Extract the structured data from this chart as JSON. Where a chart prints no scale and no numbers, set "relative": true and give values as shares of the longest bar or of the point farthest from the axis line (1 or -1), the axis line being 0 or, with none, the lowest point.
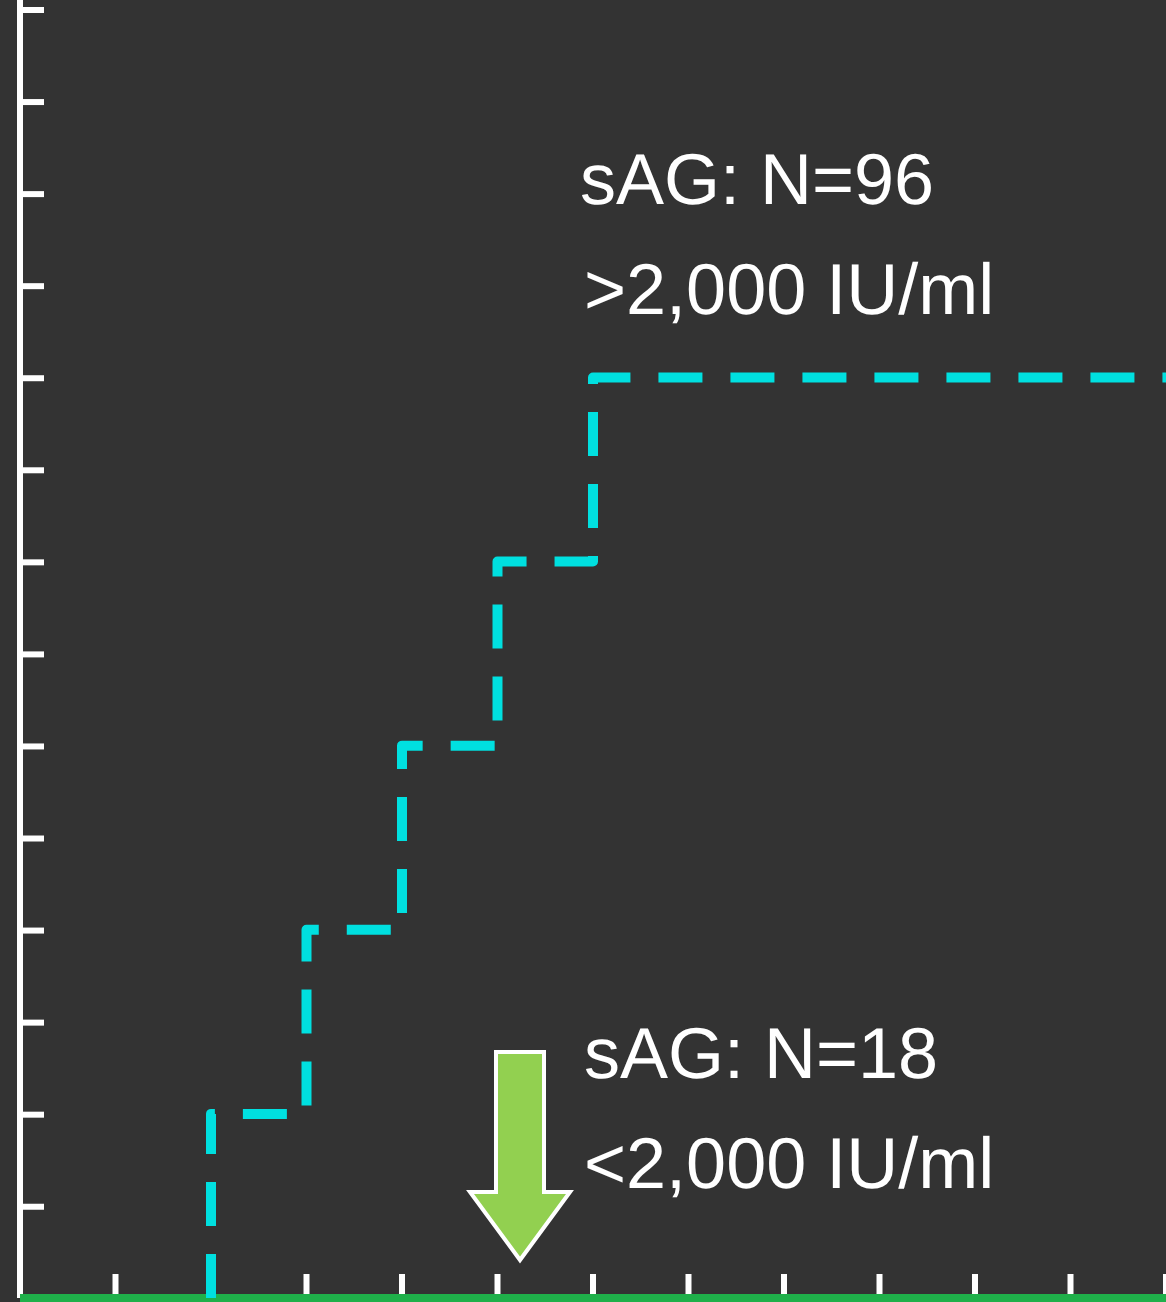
{
  "chart_data": {
    "type": "step",
    "relative": true,
    "categories": [
      null,
      null,
      null,
      null,
      null,
      null,
      null,
      null,
      null,
      null,
      null,
      null,
      null
    ],
    "series": [
      {
        "color": "#00e0e0",
        "line_style": "dashed",
        "values": [
          null,
          null,
          0,
          0.2,
          0.4,
          0.6,
          0.8,
          1,
          1,
          1,
          1,
          1,
          1
        ]
      },
      {
        "color": "#1fb04a",
        "line_style": "solid",
        "values": [
          0,
          0,
          0,
          0,
          0,
          0,
          0,
          0,
          0,
          0,
          0,
          0,
          0
        ]
      }
    ],
    "annotations": [
      "sAG: N=96",
      ">2,000 IU/ml",
      "sAG: N=18",
      "<2,000 IU/ml"
    ],
    "legend": false,
    "marker": "none"
  }
}
